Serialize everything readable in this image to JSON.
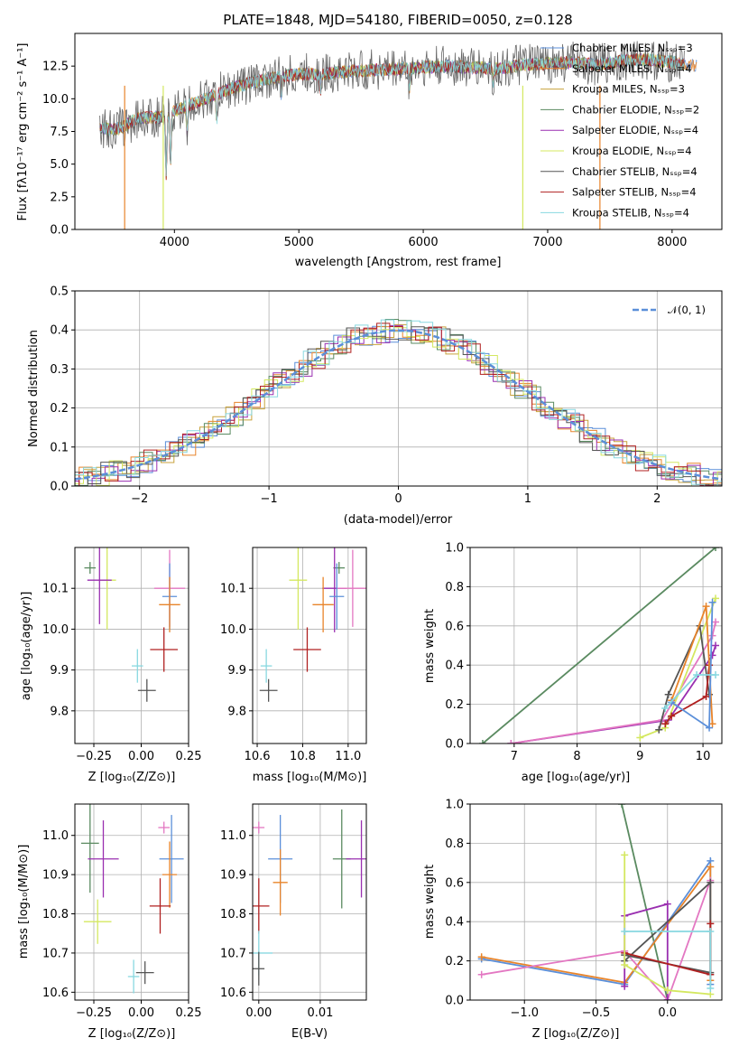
{
  "chart_data": [
    {
      "type": "line",
      "title": "PLATE=1848, MJD=54180, FIBERID=0050, z=0.128",
      "xlabel": "wavelength [Angstrom, rest frame]",
      "ylabel": "Flux [fλ10⁻¹⁷ erg cm⁻² s⁻¹ A⁻¹]",
      "xlim": [
        3200,
        8400
      ],
      "ylim": [
        0,
        15
      ],
      "xticks": [
        "4000",
        "5000",
        "6000",
        "7000",
        "8000"
      ],
      "yticks": [
        "0.0",
        "2.5",
        "5.0",
        "7.5",
        "10.0",
        "12.5"
      ],
      "grid": false,
      "legend_position": "top-right",
      "series": [
        {
          "name": "Chabrier MILES, N_SSP=3",
          "color": "#5b8fd9"
        },
        {
          "name": "Salpeter MILES, N_SSP=4",
          "color": "#e8842a"
        },
        {
          "name": "Kroupa MILES, N_SSP=3",
          "color": "#c8a23c"
        },
        {
          "name": "Chabrier ELODIE, N_SSP=2",
          "color": "#5a8a60"
        },
        {
          "name": "Salpeter ELODIE, N_SSP=4",
          "color": "#9a2fb0"
        },
        {
          "name": "Kroupa ELODIE, N_SSP=4",
          "color": "#d4e860"
        },
        {
          "name": "Chabrier STELIB, N_SSP=4",
          "color": "#555555"
        },
        {
          "name": "Salpeter STELIB, N_SSP=4",
          "color": "#b02020"
        },
        {
          "name": "Kroupa STELIB, N_SSP=4",
          "color": "#88d8e0"
        }
      ],
      "spectrum": {
        "x": [
          3400,
          3500,
          3600,
          3700,
          3800,
          3900,
          4000,
          4200,
          4400,
          4600,
          4800,
          5000,
          5200,
          5400,
          5600,
          5800,
          6000,
          6200,
          6400,
          6600,
          6800,
          7000,
          7200,
          7400,
          7600,
          7800,
          8000,
          8200
        ],
        "y": [
          7.8,
          7.6,
          7.9,
          8.5,
          8.6,
          8.6,
          9.1,
          9.8,
          10.6,
          11.2,
          11.6,
          11.9,
          11.9,
          12.1,
          12.2,
          12.3,
          12.4,
          12.5,
          12.4,
          12.3,
          12.6,
          12.7,
          12.8,
          12.6,
          12.9,
          13.0,
          12.8,
          12.5
        ]
      }
    },
    {
      "type": "histogram",
      "xlabel": "(data-model)/error",
      "ylabel": "Normed distribution",
      "xlim": [
        -2.5,
        2.5
      ],
      "ylim": [
        0,
        0.5
      ],
      "xticks": [
        "−2",
        "−1",
        "0",
        "1",
        "2"
      ],
      "yticks": [
        "0.0",
        "0.1",
        "0.2",
        "0.3",
        "0.4",
        "0.5"
      ],
      "grid": true,
      "legend_position": "top-right",
      "reference": {
        "name": "𝒩(0, 1)",
        "color": "#5b8fd9",
        "style": "dashed"
      }
    },
    {
      "type": "scatter",
      "xlabel": "Z [log₁₀(Z/Z⊙)]",
      "ylabel": "age  [log₁₀(age/yr)]",
      "xlim": [
        -0.35,
        0.25
      ],
      "ylim": [
        9.72,
        10.2
      ],
      "xticks": [
        "−0.25",
        "0.00",
        "0.25"
      ],
      "yticks": [
        "9.8",
        "9.9",
        "10.0",
        "10.1"
      ],
      "grid": true,
      "points": [
        {
          "x": -0.27,
          "y": 10.15,
          "color": "#5a8a60"
        },
        {
          "x": -0.18,
          "y": 10.12,
          "color": "#d4e860"
        },
        {
          "x": -0.22,
          "y": 10.12,
          "color": "#9a2fb0"
        },
        {
          "x": 0.15,
          "y": 10.1,
          "color": "#e377c2"
        },
        {
          "x": 0.15,
          "y": 10.08,
          "color": "#5b8fd9"
        },
        {
          "x": 0.15,
          "y": 10.06,
          "color": "#e8842a"
        },
        {
          "x": 0.12,
          "y": 9.95,
          "color": "#b02020"
        },
        {
          "x": -0.02,
          "y": 9.91,
          "color": "#88d8e0"
        },
        {
          "x": 0.03,
          "y": 9.85,
          "color": "#555555"
        }
      ]
    },
    {
      "type": "scatter",
      "xlabel": "mass [log₁₀(M/M⊙)]",
      "ylabel": "",
      "xlim": [
        10.58,
        11.08
      ],
      "ylim": [
        9.72,
        10.2
      ],
      "xticks": [
        "10.6",
        "10.8",
        "11.0"
      ],
      "yticks": [
        "9.8",
        "9.9",
        "10.0",
        "10.1"
      ],
      "grid": true,
      "points": [
        {
          "x": 10.96,
          "y": 10.15,
          "color": "#5a8a60"
        },
        {
          "x": 10.78,
          "y": 10.12,
          "color": "#d4e860"
        },
        {
          "x": 10.94,
          "y": 10.1,
          "color": "#9a2fb0"
        },
        {
          "x": 11.02,
          "y": 10.1,
          "color": "#e377c2"
        },
        {
          "x": 10.95,
          "y": 10.08,
          "color": "#5b8fd9"
        },
        {
          "x": 10.89,
          "y": 10.06,
          "color": "#e8842a"
        },
        {
          "x": 10.82,
          "y": 9.95,
          "color": "#b02020"
        },
        {
          "x": 10.64,
          "y": 9.91,
          "color": "#88d8e0"
        },
        {
          "x": 10.65,
          "y": 9.85,
          "color": "#555555"
        }
      ]
    },
    {
      "type": "line",
      "xlabel": "age  [log₁₀(age/yr)]",
      "ylabel": "mass weight",
      "xlim": [
        6.3,
        10.3
      ],
      "ylim": [
        0,
        1
      ],
      "xticks": [
        "7",
        "8",
        "9",
        "10"
      ],
      "yticks": [
        "0.0",
        "0.2",
        "0.4",
        "0.6",
        "0.8",
        "1.0"
      ],
      "grid": true,
      "series": [
        {
          "color": "#5a8a60",
          "x": [
            6.5,
            10.2
          ],
          "y": [
            0.0,
            1.0
          ]
        },
        {
          "color": "#9a2fb0",
          "x": [
            6.95,
            9.45,
            10.15,
            10.2
          ],
          "y": [
            0.0,
            0.12,
            0.45,
            0.5
          ]
        },
        {
          "color": "#e377c2",
          "x": [
            6.95,
            9.35,
            10.15,
            10.2
          ],
          "y": [
            0.0,
            0.12,
            0.55,
            0.62
          ]
        },
        {
          "color": "#d4e860",
          "x": [
            9.0,
            9.4,
            10.2
          ],
          "y": [
            0.03,
            0.08,
            0.74
          ]
        },
        {
          "color": "#555555",
          "x": [
            9.3,
            9.45,
            9.95,
            10.1
          ],
          "y": [
            0.07,
            0.25,
            0.6,
            0.25
          ]
        },
        {
          "color": "#b02020",
          "x": [
            9.4,
            9.5,
            10.05,
            10.1
          ],
          "y": [
            0.1,
            0.14,
            0.24,
            0.4
          ]
        },
        {
          "color": "#e8842a",
          "x": [
            9.5,
            10.05,
            10.15
          ],
          "y": [
            0.22,
            0.7,
            0.1
          ]
        },
        {
          "color": "#5b8fd9",
          "x": [
            9.5,
            10.1,
            10.15
          ],
          "y": [
            0.21,
            0.08,
            0.72
          ]
        },
        {
          "color": "#88d8e0",
          "x": [
            9.4,
            9.9,
            10.2
          ],
          "y": [
            0.18,
            0.35,
            0.35
          ]
        }
      ]
    },
    {
      "type": "scatter",
      "xlabel": "Z [log₁₀(Z/Z⊙)]",
      "ylabel": "mass [log₁₀(M/M⊙)]",
      "xlim": [
        -0.35,
        0.25
      ],
      "ylim": [
        10.58,
        11.08
      ],
      "xticks": [
        "−0.25",
        "0.00",
        "0.25"
      ],
      "yticks": [
        "10.6",
        "10.7",
        "10.8",
        "10.9",
        "11.0"
      ],
      "grid": true,
      "points": [
        {
          "x": 0.12,
          "y": 11.02,
          "color": "#e377c2"
        },
        {
          "x": -0.27,
          "y": 10.98,
          "color": "#5a8a60"
        },
        {
          "x": 0.16,
          "y": 10.94,
          "color": "#5b8fd9"
        },
        {
          "x": -0.2,
          "y": 10.94,
          "color": "#9a2fb0"
        },
        {
          "x": 0.15,
          "y": 10.9,
          "color": "#e8842a"
        },
        {
          "x": 0.1,
          "y": 10.82,
          "color": "#b02020"
        },
        {
          "x": -0.23,
          "y": 10.78,
          "color": "#d4e860"
        },
        {
          "x": -0.04,
          "y": 10.64,
          "color": "#88d8e0"
        },
        {
          "x": 0.02,
          "y": 10.65,
          "color": "#555555"
        }
      ]
    },
    {
      "type": "scatter",
      "xlabel": "E(B-V)",
      "ylabel": "",
      "xlim": [
        -0.001,
        0.0175
      ],
      "ylim": [
        10.58,
        11.08
      ],
      "xticks": [
        "0.00",
        "0.01"
      ],
      "yticks": [
        "10.6",
        "10.7",
        "10.8",
        "10.9",
        "11.0"
      ],
      "grid": true,
      "points": [
        {
          "x": 0.0,
          "y": 11.02,
          "color": "#e377c2"
        },
        {
          "x": 0.0135,
          "y": 10.94,
          "color": "#5a8a60"
        },
        {
          "x": 0.0035,
          "y": 10.94,
          "color": "#5b8fd9"
        },
        {
          "x": 0.0167,
          "y": 10.94,
          "color": "#9a2fb0"
        },
        {
          "x": 0.0035,
          "y": 10.88,
          "color": "#e8842a"
        },
        {
          "x": 0.0,
          "y": 10.82,
          "color": "#b02020"
        },
        {
          "x": 0.0,
          "y": 10.7,
          "color": "#88d8e0"
        },
        {
          "x": 0.0,
          "y": 10.66,
          "color": "#555555"
        }
      ]
    },
    {
      "type": "line",
      "xlabel": "Z [log₁₀(Z/Z⊙)]",
      "ylabel": "mass weight",
      "xlim": [
        -1.38,
        0.38
      ],
      "ylim": [
        0,
        1
      ],
      "xticks": [
        "−1.0",
        "−0.5",
        "0.0"
      ],
      "yticks": [
        "0.0",
        "0.2",
        "0.4",
        "0.6",
        "0.8",
        "1.0"
      ],
      "grid": true,
      "series": [
        {
          "color": "#5a8a60",
          "x": [
            -0.32,
            0.0
          ],
          "y": [
            1.0,
            0.0
          ]
        },
        {
          "color": "#5b8fd9",
          "x": [
            -1.3,
            -0.3,
            0.3,
            0.3
          ],
          "y": [
            0.21,
            0.08,
            0.71,
            0.08
          ]
        },
        {
          "color": "#e8842a",
          "x": [
            -1.3,
            -0.3,
            0.3,
            0.3
          ],
          "y": [
            0.22,
            0.09,
            0.68,
            0.1
          ]
        },
        {
          "color": "#e377c2",
          "x": [
            -1.3,
            -0.3,
            0.0,
            0.3
          ],
          "y": [
            0.13,
            0.25,
            0.0,
            0.61
          ]
        },
        {
          "color": "#9a2fb0",
          "x": [
            -0.3,
            -0.3,
            0.0,
            0.0
          ],
          "y": [
            0.07,
            0.43,
            0.49,
            0.0
          ]
        },
        {
          "color": "#555555",
          "x": [
            -0.3,
            0.3,
            0.3,
            -0.3
          ],
          "y": [
            0.2,
            0.6,
            0.14,
            0.23
          ]
        },
        {
          "color": "#b02020",
          "x": [
            -0.3,
            0.3,
            0.3
          ],
          "y": [
            0.24,
            0.13,
            0.39
          ]
        },
        {
          "color": "#d4e860",
          "x": [
            -0.3,
            -0.3,
            0.0,
            0.3
          ],
          "y": [
            0.74,
            0.18,
            0.05,
            0.03
          ]
        },
        {
          "color": "#88d8e0",
          "x": [
            -0.3,
            0.3,
            0.3
          ],
          "y": [
            0.35,
            0.35,
            0.06
          ]
        }
      ]
    }
  ]
}
